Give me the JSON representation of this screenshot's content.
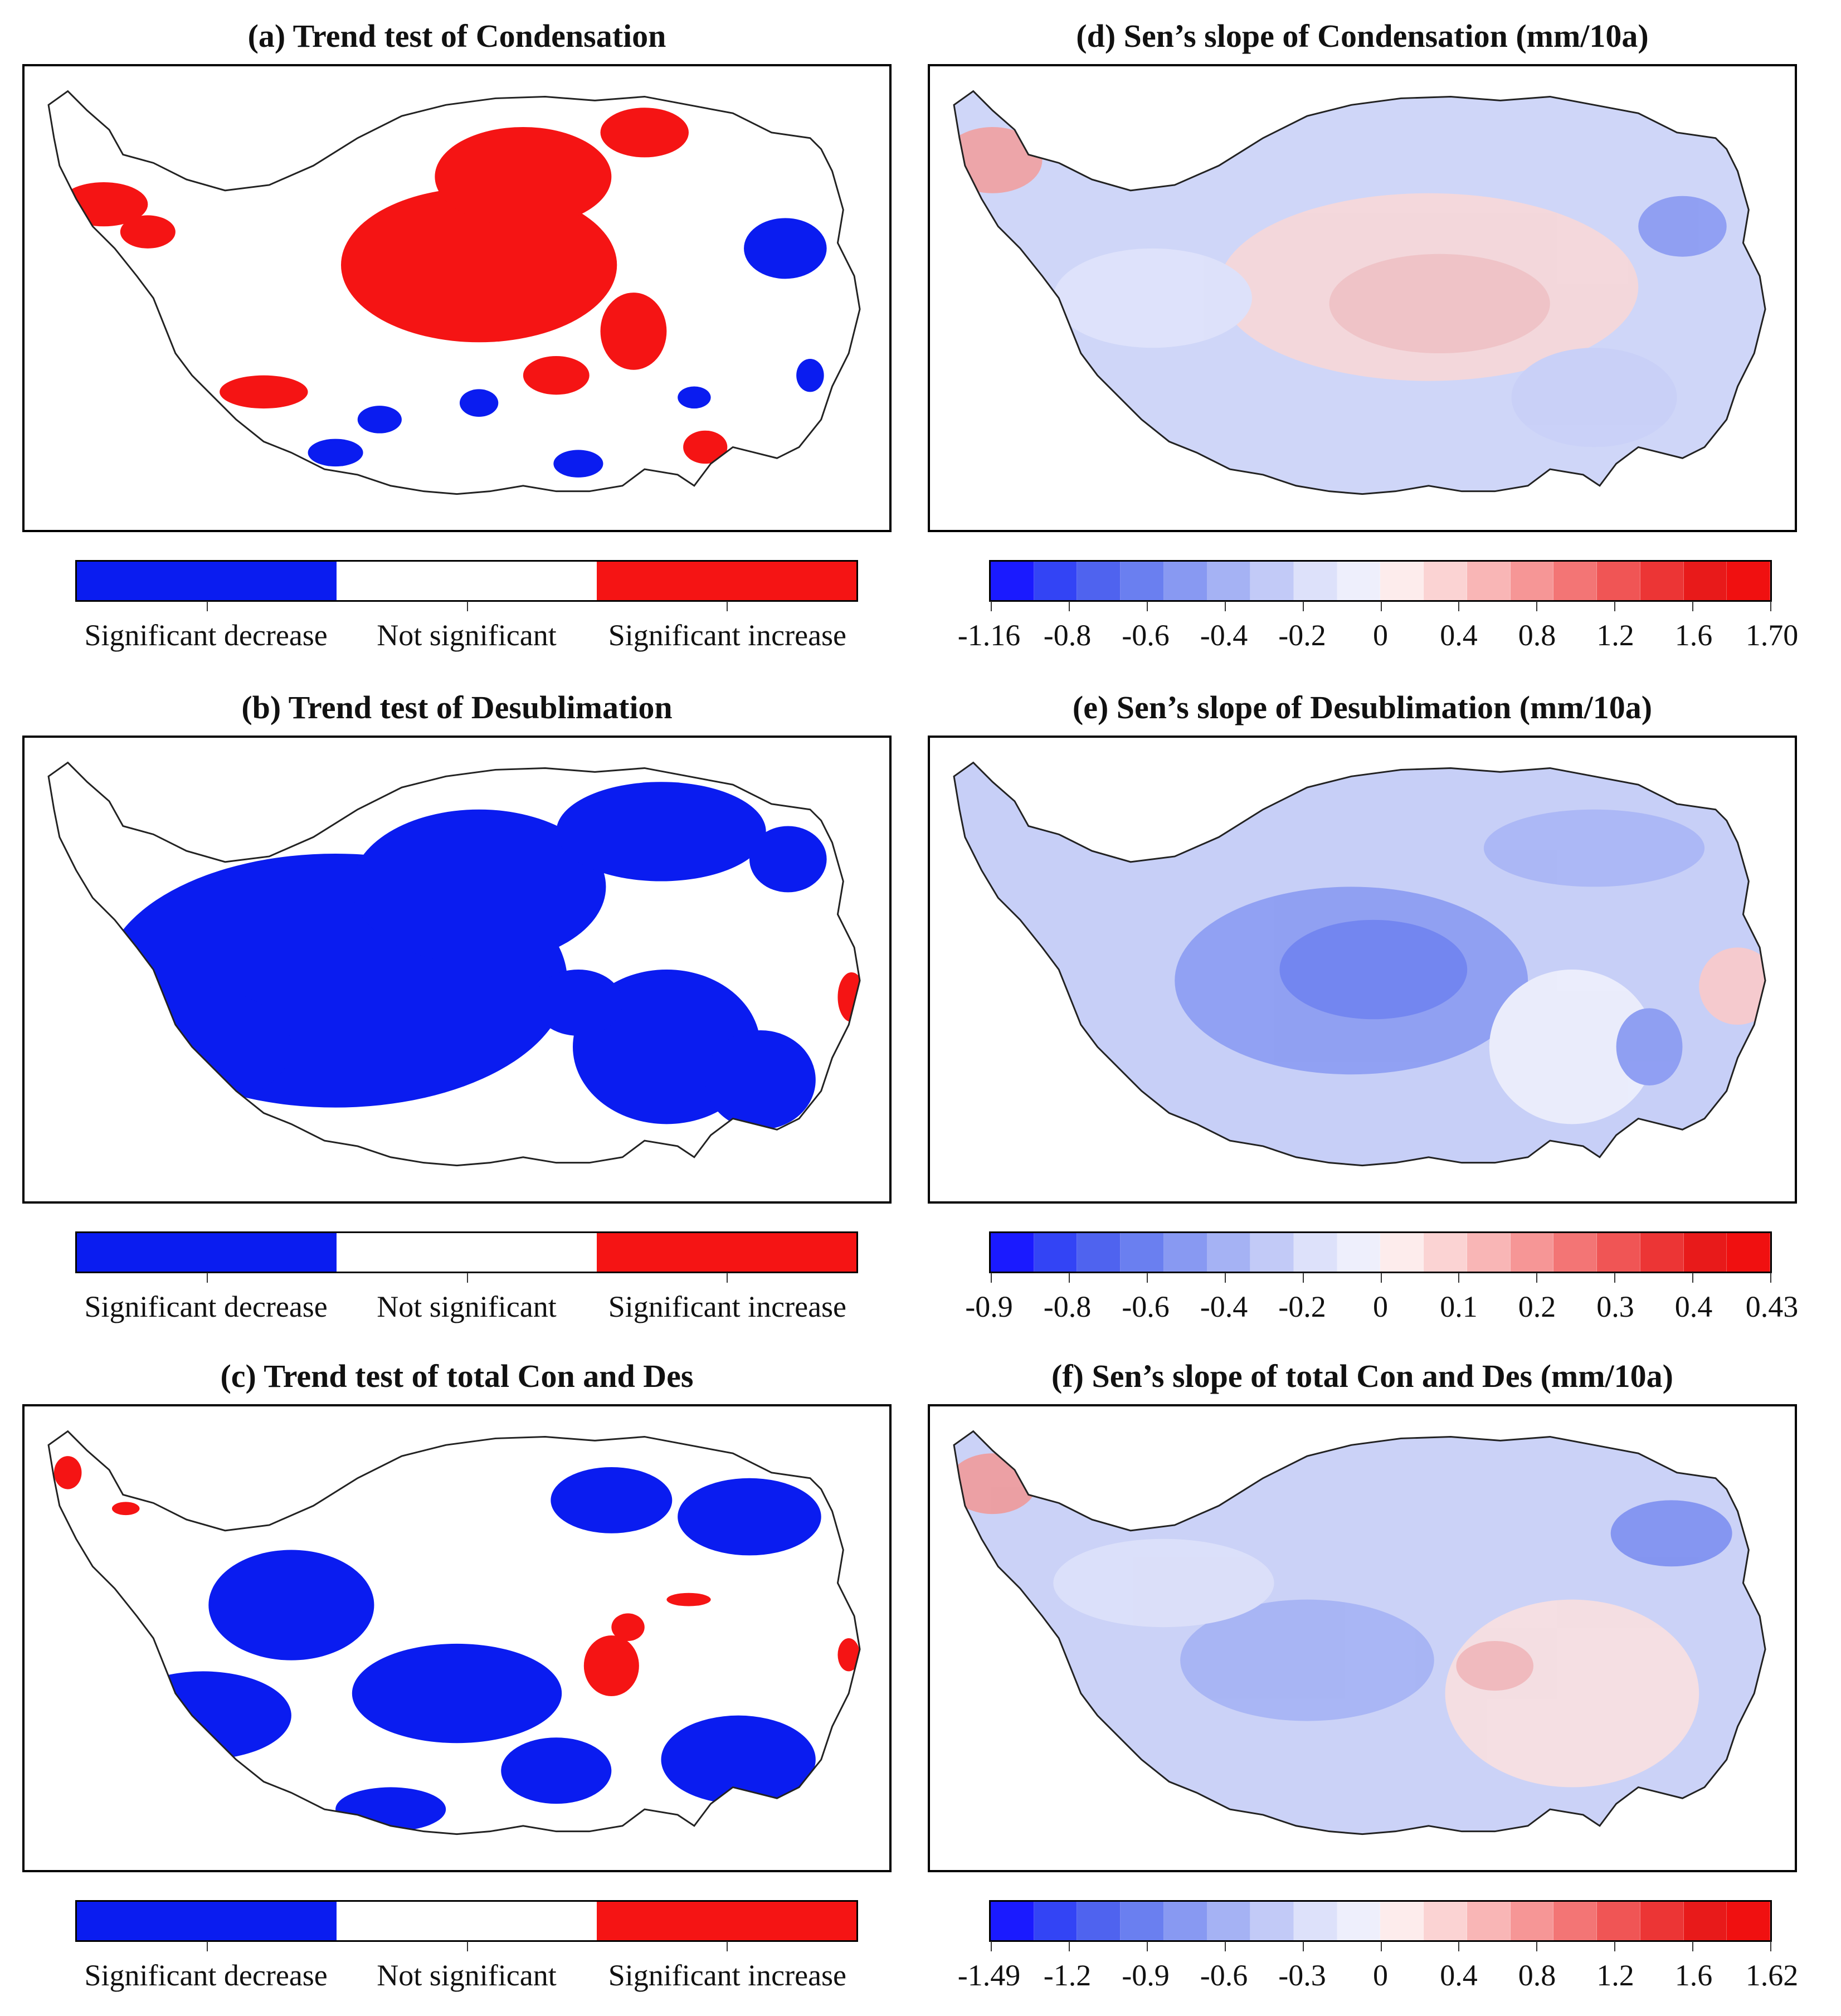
{
  "panels": [
    {
      "id": "a",
      "kind": "trend",
      "title": "(a) Trend test of Condensation",
      "legend": [
        "Significant decrease",
        "Not significant",
        "Significant increase"
      ],
      "colors": [
        "#0a1cf0",
        "#ffffff",
        "#f51414"
      ]
    },
    {
      "id": "b",
      "kind": "trend",
      "title": "(b) Trend test of Desublimation",
      "legend": [
        "Significant decrease",
        "Not significant",
        "Significant increase"
      ],
      "colors": [
        "#0a1cf0",
        "#ffffff",
        "#f51414"
      ]
    },
    {
      "id": "c",
      "kind": "trend",
      "title": "(c) Trend test of total Con and Des",
      "legend": [
        "Significant decrease",
        "Not significant",
        "Significant increase"
      ],
      "colors": [
        "#0a1cf0",
        "#ffffff",
        "#f51414"
      ]
    },
    {
      "id": "d",
      "kind": "slope",
      "title": "(d) Sen’s slope of Condensation (mm/10a)",
      "ticks": [
        "-1.16",
        "-0.8",
        "-0.6",
        "-0.4",
        "-0.2",
        "0",
        "0.4",
        "0.8",
        "1.2",
        "1.6",
        "1.70"
      ]
    },
    {
      "id": "e",
      "kind": "slope",
      "title": "(e) Sen’s slope of Desublimation (mm/10a)",
      "ticks": [
        "-0.9",
        "-0.8",
        "-0.6",
        "-0.4",
        "-0.2",
        "0",
        "0.1",
        "0.2",
        "0.3",
        "0.4",
        "0.43"
      ]
    },
    {
      "id": "f",
      "kind": "slope",
      "title": "(f) Sen’s slope of total Con and Des (mm/10a)",
      "ticks": [
        "-1.49",
        "-1.2",
        "-0.9",
        "-0.6",
        "-0.3",
        "0",
        "0.4",
        "0.8",
        "1.2",
        "1.6",
        "1.62"
      ]
    }
  ],
  "slope_colors": [
    "#1a1aff",
    "#3344f5",
    "#4f63ef",
    "#6a7ff0",
    "#8899f2",
    "#a5b2f4",
    "#c2caf7",
    "#dde1fa",
    "#eeeffc",
    "#fdecec",
    "#fbd3d3",
    "#f9b6b6",
    "#f69696",
    "#f37575",
    "#f05555",
    "#ec3535",
    "#e81a1a",
    "#f01010"
  ]
}
